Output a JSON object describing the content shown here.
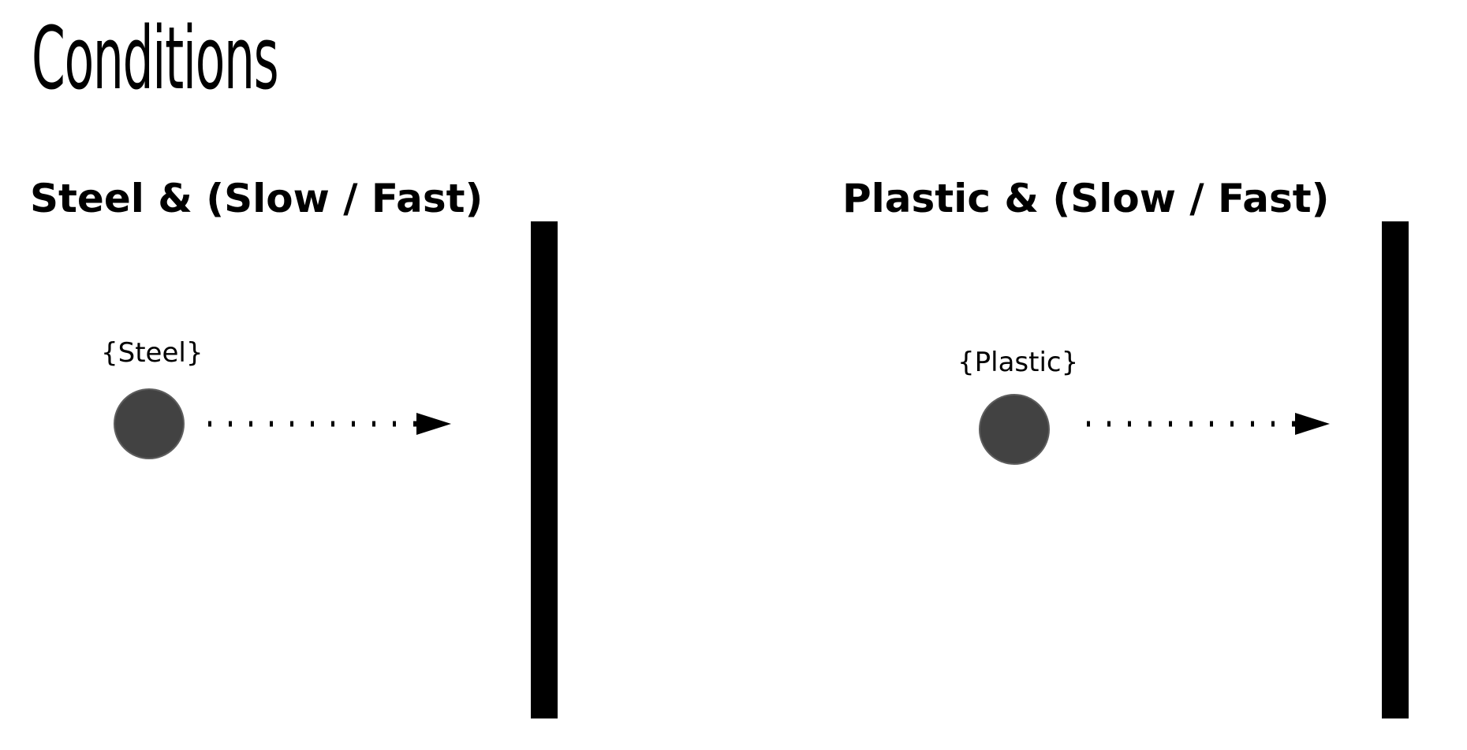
{
  "title": "Conditions",
  "conditions": [
    {
      "heading": "Steel & (Slow / Fast)",
      "ball_label": "{Steel}"
    },
    {
      "heading": "Plastic & (Slow / Fast)",
      "ball_label": "{Plastic}"
    }
  ],
  "colors": {
    "ball_fill": "#424242",
    "ball_border": "#5e5e5e",
    "wall": "#000000",
    "arrow": "#000000"
  }
}
